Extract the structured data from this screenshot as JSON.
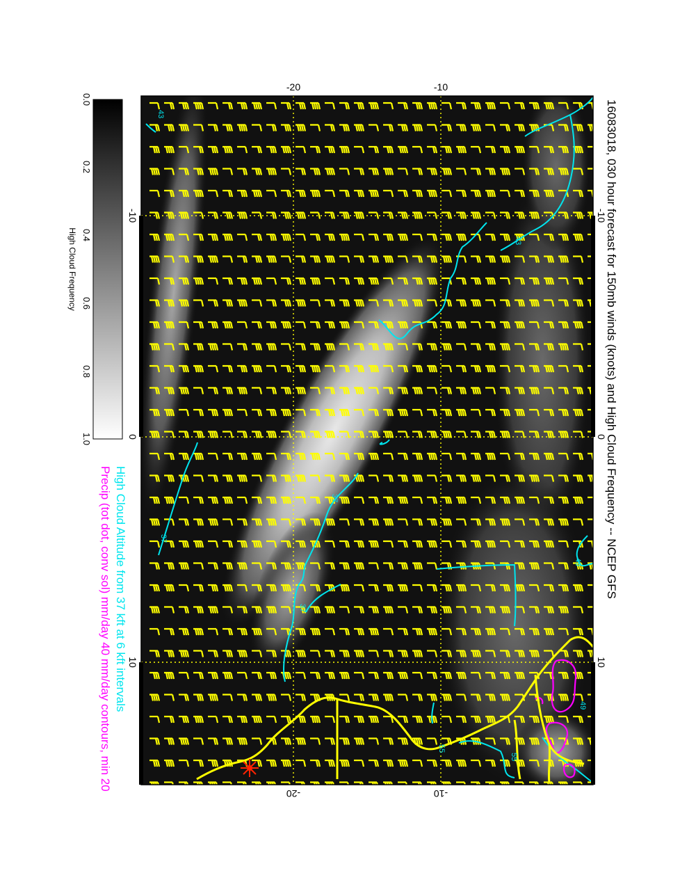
{
  "title": "16083018, 030 hour forecast for 150mb winds (knots) and High Cloud Frequency -- NCEP GFS",
  "caption_line1": "High Cloud Altitude from 37 kft at 6 kft intervals",
  "caption_line2": "Precip (tot dot, conv sol) mm/day 40 mm/day contours, min 20",
  "colorbar": {
    "label": "High Cloud Frequency",
    "ticks": [
      "0.0",
      "0.2",
      "0.4",
      "0.6",
      "0.8",
      "1.0"
    ]
  },
  "map_axes": {
    "top_labels": [
      "-20",
      "-10"
    ],
    "bottom_labels": [
      "-20",
      "-10"
    ],
    "left_labels": [
      "-10",
      "0",
      "10"
    ],
    "right_labels": [
      "-10",
      "0",
      "10"
    ]
  },
  "contour_labels": [
    "43",
    "49",
    "37",
    "37",
    "37",
    "43",
    "55",
    "55",
    "49"
  ],
  "colors": {
    "background": "#111111",
    "wind_barbs": "#ffff00",
    "cloud_altitude_contours": "#00e5ee",
    "precip_contours": "#ff00ff",
    "coastline": "#ffff00",
    "grid": "#ffff00",
    "station_marker": "#ff2200"
  }
}
